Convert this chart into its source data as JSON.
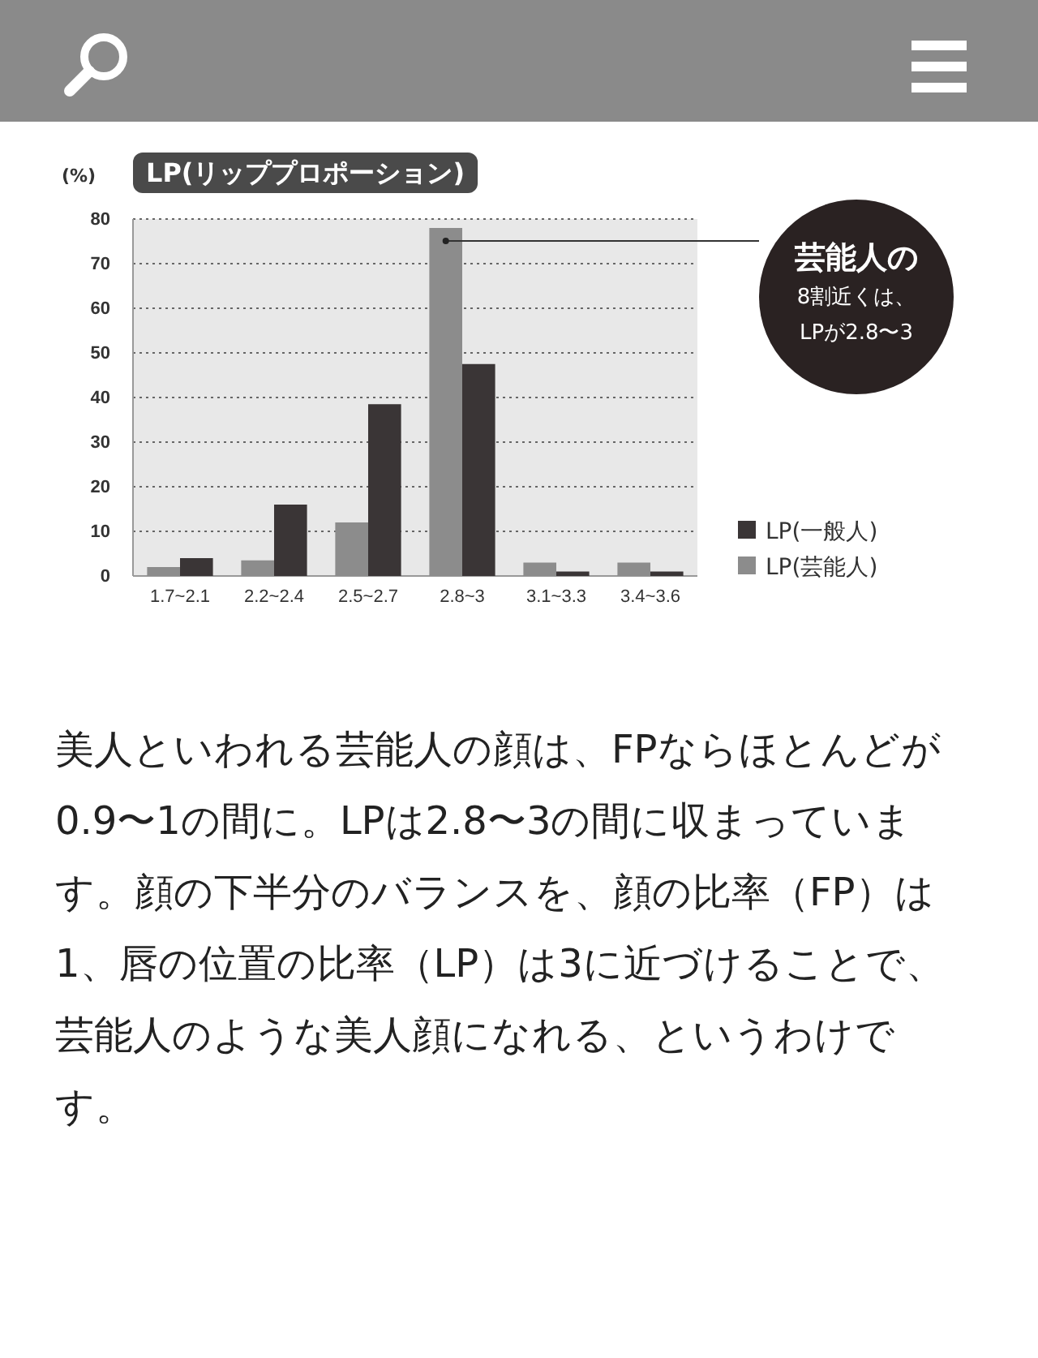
{
  "chart_data": {
    "type": "bar",
    "title": "LP(リッププロポーション)",
    "ylabel": "(%)",
    "categories": [
      "1.7~2.1",
      "2.2~2.4",
      "2.5~2.7",
      "2.8~3",
      "3.1~3.3",
      "3.4~3.6"
    ],
    "series": [
      {
        "name": "LP(芸能人)",
        "color": "#8c8c8c",
        "values": [
          2,
          3.5,
          12,
          78,
          3,
          3
        ]
      },
      {
        "name": "LP(一般人)",
        "color": "#3a3536",
        "values": [
          4,
          16,
          38.5,
          47.5,
          1,
          1
        ]
      }
    ],
    "ylim": [
      0,
      80
    ],
    "yticks": [
      0,
      10,
      20,
      30,
      40,
      50,
      60,
      70,
      80
    ],
    "grid": "y",
    "legend": "bottom right",
    "annotations": [
      "芸能人の\n8割近くは、\nLPが2.8〜3",
      "美人といわれる芸能人の顔は、FPならほとんどが0.9〜1の間に。LPは2.8〜3の間に収まっています。顔の下半分のバランスを、顔の比率（FP）は1、唇の位置の比率（LP）は3に近づけることで、芸能人のような美人顔になれる、というわけです。"
    ]
  }
}
